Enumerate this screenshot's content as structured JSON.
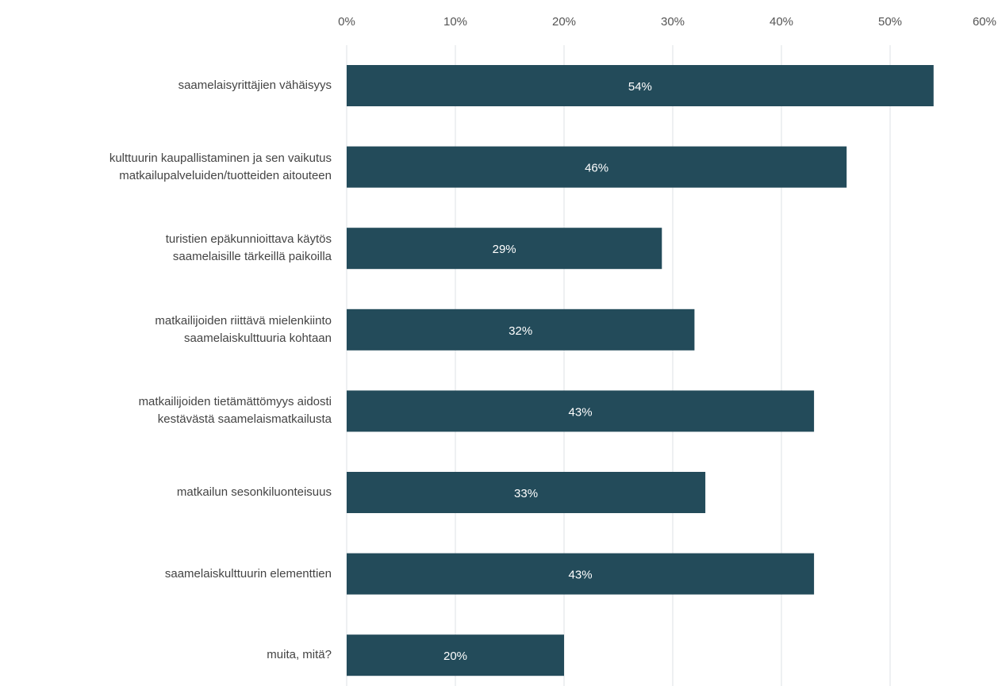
{
  "chart_data": {
    "type": "bar",
    "orientation": "horizontal",
    "categories": [
      "saamelaisyrittäjien vähäisyys",
      "kulttuurin kaupallistaminen ja sen vaikutus\nmatkailupalveluiden/tuotteiden aitouteen",
      "turistien epäkunnioittava käytös\nsaamelaisille tärkeillä paikoilla",
      "matkailijoiden riittävä mielenkiinto\nsaamelaiskulttuuria kohtaan",
      "matkailijoiden tietämättömyys aidosti\nkestävästä saamelaismatkailusta",
      "matkailun sesonkiluonteisuus",
      "saamelaiskulttuurin elementtien",
      "muita, mitä?"
    ],
    "values": [
      54,
      46,
      29,
      32,
      43,
      33,
      43,
      20
    ],
    "value_labels": [
      "54%",
      "46%",
      "29%",
      "32%",
      "43%",
      "33%",
      "43%",
      "20%"
    ],
    "color": "#234b5a",
    "xlim": [
      0,
      60
    ],
    "xticks": [
      {
        "value": 0,
        "label": "0%"
      },
      {
        "value": 10,
        "label": "10%"
      },
      {
        "value": 20,
        "label": "20%"
      },
      {
        "value": 30,
        "label": "30%"
      },
      {
        "value": 40,
        "label": "40%"
      },
      {
        "value": 50,
        "label": "50%"
      },
      {
        "value": 60,
        "label": "60%"
      }
    ],
    "grid": true
  }
}
